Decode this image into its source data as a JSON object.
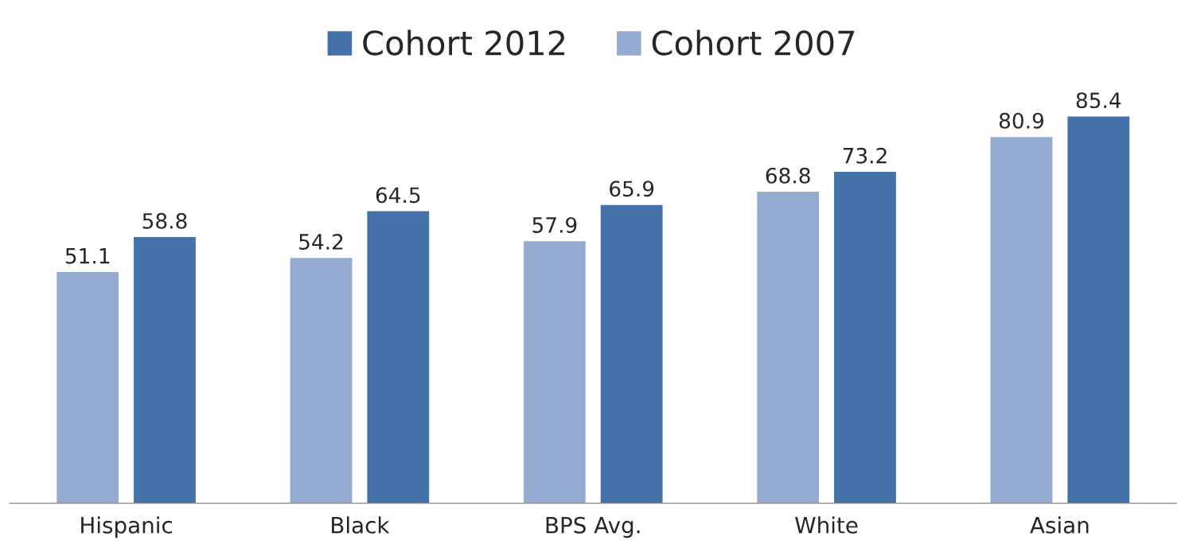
{
  "chart_data": {
    "type": "bar",
    "categories": [
      "Hispanic",
      "Black",
      "BPS Avg.",
      "White",
      "Asian"
    ],
    "series": [
      {
        "name": "Cohort 2007",
        "color": "#95abd2",
        "values": [
          51.1,
          54.2,
          57.9,
          68.8,
          80.9
        ]
      },
      {
        "name": "Cohort 2012",
        "color": "#4472a8",
        "values": [
          58.8,
          64.5,
          65.9,
          73.2,
          85.4
        ]
      }
    ],
    "data_labels": true,
    "legend": "top",
    "grid": false,
    "tick_labels": "x"
  }
}
